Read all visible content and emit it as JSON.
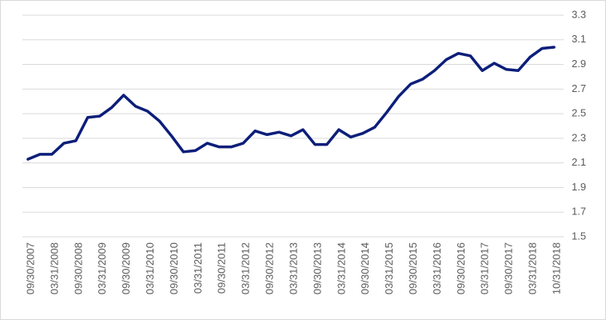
{
  "chart_data": {
    "type": "line",
    "categories": [
      "09/30/2007",
      null,
      "03/31/2008",
      null,
      "09/30/2008",
      null,
      "03/31/2009",
      null,
      "09/30/2009",
      null,
      "03/31/2010",
      null,
      "09/30/2010",
      null,
      "03/31/2011",
      null,
      "09/30/2011",
      null,
      "03/31/2012",
      null,
      "09/30/2012",
      null,
      "03/31/2013",
      null,
      "09/30/2013",
      null,
      "03/31/2014",
      null,
      "09/30/2014",
      null,
      "03/31/2015",
      null,
      "09/30/2015",
      null,
      "03/31/2016",
      null,
      "09/30/2016",
      null,
      "03/31/2017",
      null,
      "09/30/2017",
      null,
      "03/31/2018",
      null,
      "10/31/2018"
    ],
    "values": [
      2.13,
      2.17,
      2.17,
      2.26,
      2.28,
      2.47,
      2.48,
      2.55,
      2.65,
      2.56,
      2.52,
      2.44,
      2.32,
      2.19,
      2.2,
      2.26,
      2.23,
      2.23,
      2.26,
      2.36,
      2.33,
      2.35,
      2.32,
      2.37,
      2.25,
      2.25,
      2.37,
      2.31,
      2.34,
      2.39,
      2.51,
      2.64,
      2.74,
      2.78,
      2.85,
      2.94,
      2.99,
      2.97,
      2.85,
      2.91,
      2.86,
      2.85,
      2.96,
      3.03,
      3.04
    ],
    "color": "#0c1e7a",
    "ylim": [
      1.5,
      3.3
    ],
    "yticks": [
      1.5,
      1.7,
      1.9,
      2.1,
      2.3,
      2.5,
      2.7,
      2.9,
      3.1,
      3.3
    ],
    "grid": true
  }
}
